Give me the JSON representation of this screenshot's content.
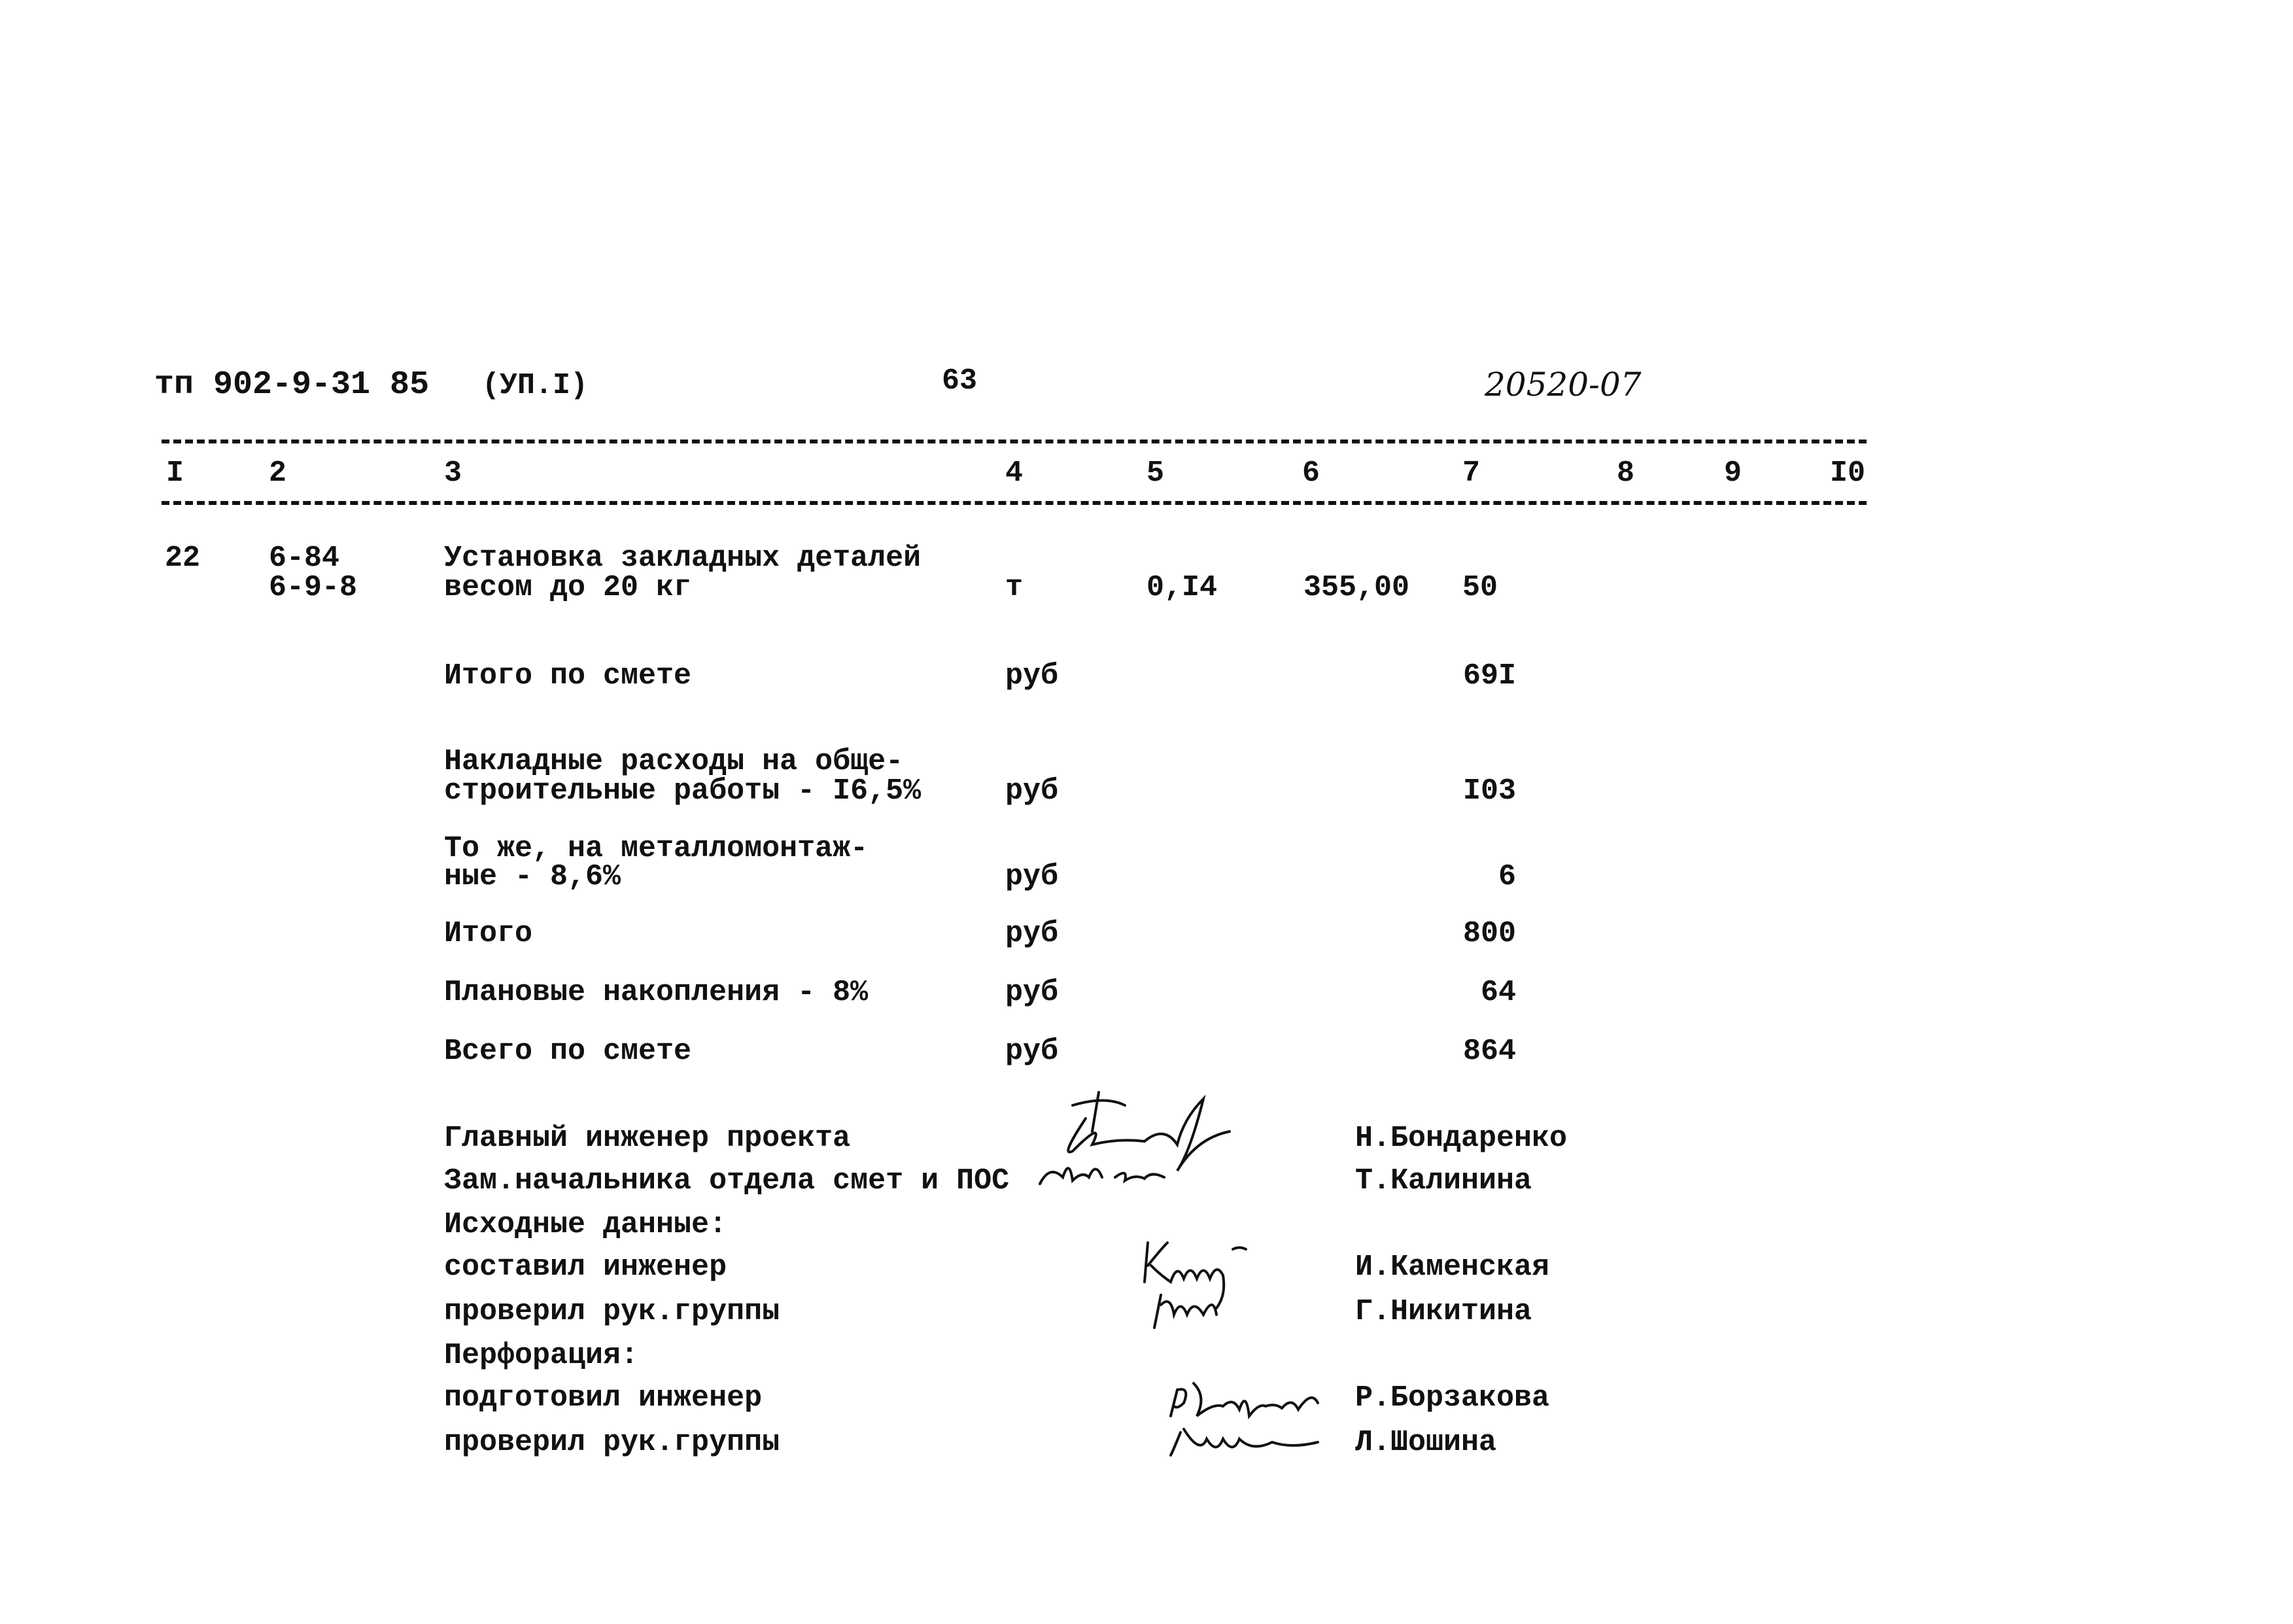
{
  "header": {
    "doc_code": "тп 902-9-31 85",
    "album": "(УП.I)",
    "page_number": "63",
    "doc_number": "20520-07"
  },
  "columns": [
    "I",
    "2",
    "3",
    "4",
    "5",
    "6",
    "7",
    "8",
    "9",
    "I0"
  ],
  "item": {
    "no": "22",
    "code_1": "6-84",
    "code_2": "6-9-8",
    "name_1": "Установка закладных деталей",
    "name_2": "весом до 20 кг",
    "unit": "т",
    "quantity": "0,I4",
    "unit_price": "355,00",
    "total": "50"
  },
  "summary": [
    {
      "label_1": "Итого по смете",
      "label_2": "",
      "unit": "руб",
      "value": "69I"
    },
    {
      "label_1": "Накладные расходы на обще-",
      "label_2": "строительные работы - I6,5%",
      "unit": "руб",
      "value": "I03"
    },
    {
      "label_1": "То же, на металломонтаж-",
      "label_2": "ные - 8,6%",
      "unit": "руб",
      "value": "6"
    },
    {
      "label_1": "Итого",
      "label_2": "",
      "unit": "руб",
      "value": "800"
    },
    {
      "label_1": "Плановые накопления - 8%",
      "label_2": "",
      "unit": "руб",
      "value": "64"
    },
    {
      "label_1": "Всего по смете",
      "label_2": "",
      "unit": "руб",
      "value": "864"
    }
  ],
  "signatures": [
    {
      "role": "Главный инженер проекта",
      "name": "Н.Бондаренко"
    },
    {
      "role": "Зам.начальника отдела смет и ПОС",
      "name": "Т.Калинина"
    },
    {
      "role": "Исходные данные:",
      "name": ""
    },
    {
      "role": "составил инженер",
      "name": "И.Каменская"
    },
    {
      "role": "проверил рук.группы",
      "name": "Г.Никитина"
    },
    {
      "role": "Перфорация:",
      "name": ""
    },
    {
      "role": "подготовил инженер",
      "name": "Р.Борзакова"
    },
    {
      "role": "проверил рук.группы",
      "name": "Л.Шошина"
    }
  ]
}
